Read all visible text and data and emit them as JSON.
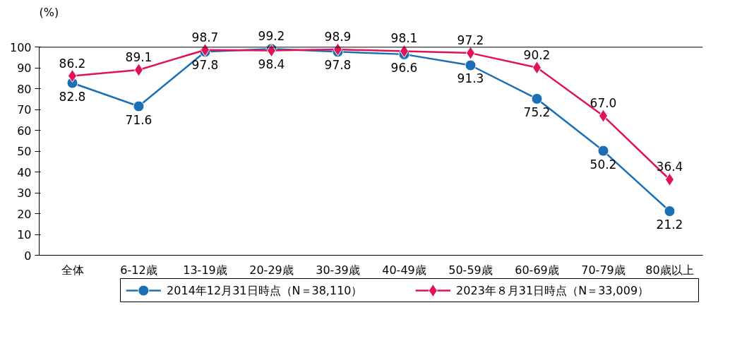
{
  "chart_data": {
    "type": "line",
    "ylabel": "(%)",
    "categories": [
      "全体",
      "6-12歳",
      "13-19歳",
      "20-29歳",
      "30-39歳",
      "40-49歳",
      "50-59歳",
      "60-69歳",
      "70-79歳",
      "80歳以上"
    ],
    "ylim": [
      0,
      100
    ],
    "yticks": [
      0,
      10,
      20,
      30,
      40,
      50,
      60,
      70,
      80,
      90,
      100
    ],
    "legend": "bottom",
    "grid": false,
    "series": [
      {
        "name": "2014年12月31日時点（N＝38,110）",
        "color": "#1a6fb5",
        "marker": "circle",
        "values": [
          82.8,
          71.6,
          97.8,
          99.2,
          97.8,
          96.6,
          91.3,
          75.2,
          50.2,
          21.2
        ],
        "value_labels": [
          "82.8",
          "71.6",
          "97.8",
          "99.2",
          "97.8",
          "96.6",
          "91.3",
          "75.2",
          "50.2",
          "21.2"
        ]
      },
      {
        "name": "2023年８月31日時点（N＝33,009）",
        "color": "#e0135a",
        "marker": "diamond",
        "values": [
          86.2,
          89.1,
          98.7,
          98.4,
          98.9,
          98.1,
          97.2,
          90.2,
          67.0,
          36.4
        ],
        "value_labels": [
          "86.2",
          "89.1",
          "98.7",
          "98.4",
          "98.9",
          "98.1",
          "97.2",
          "90.2",
          "67.0",
          "36.4"
        ]
      }
    ]
  }
}
